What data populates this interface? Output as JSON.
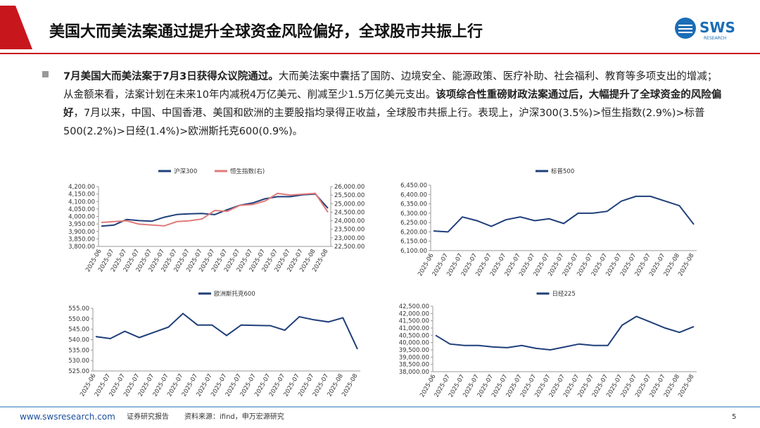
{
  "header": {
    "title": "美国大而美法案通过提升全球资金风险偏好，全球股市共振上行",
    "logo": "SWS",
    "logo_sub": "RESEARCH"
  },
  "body": [
    {
      "text": "7月美国大而美法案于7月3日获得众议院通过。",
      "bold": true
    },
    {
      "text": "大而美法案中囊括了国防、边境安全、能源政策、医疗补助、社会福利、教育等多项支出的增减；从金额来看，法案计划在未来10年内减税4万亿美元、削减至少1.5万亿美元支出。",
      "bold": false
    },
    {
      "text": "该项综合性重磅财政法案通过后，大幅提升了全球资金的风险偏好",
      "bold": true
    },
    {
      "text": "，7月以来，中国、中国香港、美国和欧洲的主要股指均录得正收益，全球股市共振上行。表现上，沪深300(3.5%)>恒生指数(2.9%)>标普500(2.2%)>日经(1.4%)>欧洲斯托克600(0.9%)。",
      "bold": false
    }
  ],
  "chart_data": [
    {
      "type": "line",
      "categories": [
        "2025-06",
        "2025-07",
        "2025-07",
        "2025-07",
        "2025-07",
        "2025-07",
        "2025-07",
        "2025-07",
        "2025-07",
        "2025-07",
        "2025-07",
        "2025-07",
        "2025-07",
        "2025-07",
        "2025-07",
        "2025-07",
        "2025-07",
        "2025-08",
        "2025-08"
      ],
      "series": [
        {
          "name": "沪深300",
          "color": "#1f3f7a",
          "values": [
            3935,
            3942,
            3980,
            3972,
            3968,
            3995,
            4013,
            4018,
            4020,
            4012,
            4045,
            4075,
            4090,
            4118,
            4132,
            4132,
            4145,
            4150,
            4055
          ]
        },
        {
          "name": "恒生指数(右)",
          "color": "#e07a7a",
          "axis": "y2",
          "values": [
            23900,
            23950,
            24000,
            23800,
            23750,
            23700,
            23950,
            24000,
            24100,
            24600,
            24550,
            24900,
            24950,
            25150,
            25600,
            25500,
            25550,
            25600,
            24500
          ]
        }
      ],
      "ylim": [
        3800,
        4200
      ],
      "yticks": [
        {
          "value": 3800,
          "label": "3,800.00"
        },
        {
          "value": 3850,
          "label": "3,850.00"
        },
        {
          "value": 3900,
          "label": "3,900.00"
        },
        {
          "value": 3950,
          "label": "3,950.00"
        },
        {
          "value": 4000,
          "label": "4,000.00"
        },
        {
          "value": 4050,
          "label": "4,050.00"
        },
        {
          "value": 4100,
          "label": "4,100.00"
        },
        {
          "value": 4150,
          "label": "4,150.00"
        },
        {
          "value": 4200,
          "label": "4,200.00"
        }
      ],
      "y2lim": [
        22500,
        26000
      ],
      "y2ticks": [
        {
          "value": 22500,
          "label": "22,500.00"
        },
        {
          "value": 23000,
          "label": "23,000.00"
        },
        {
          "value": 23500,
          "label": "23,500.00"
        },
        {
          "value": 24000,
          "label": "24,000.00"
        },
        {
          "value": 24500,
          "label": "24,500.00"
        },
        {
          "value": 25000,
          "label": "25,000.00"
        },
        {
          "value": 25500,
          "label": "25,500.00"
        },
        {
          "value": 26000,
          "label": "26,000.00"
        }
      ]
    },
    {
      "type": "line",
      "categories": [
        "2025-06",
        "2025-07",
        "2025-07",
        "2025-07",
        "2025-07",
        "2025-07",
        "2025-07",
        "2025-07",
        "2025-07",
        "2025-07",
        "2025-07",
        "2025-07",
        "2025-07",
        "2025-07",
        "2025-07",
        "2025-07",
        "2025-07",
        "2025-08",
        "2025-08"
      ],
      "series": [
        {
          "name": "标普500",
          "color": "#1f3f7a",
          "values": [
            6205,
            6200,
            6280,
            6260,
            6230,
            6265,
            6280,
            6260,
            6270,
            6245,
            6300,
            6300,
            6310,
            6365,
            6390,
            6390,
            6365,
            6340,
            6240
          ]
        }
      ],
      "ylim": [
        6100,
        6450
      ],
      "yticks": [
        {
          "value": 6100,
          "label": "6,100.00"
        },
        {
          "value": 6150,
          "label": "6,150.00"
        },
        {
          "value": 6200,
          "label": "6,200.00"
        },
        {
          "value": 6250,
          "label": "6,250.00"
        },
        {
          "value": 6300,
          "label": "6,300.00"
        },
        {
          "value": 6350,
          "label": "6,350.00"
        },
        {
          "value": 6400,
          "label": "6,400.00"
        },
        {
          "value": 6450,
          "label": "6,450.00"
        }
      ]
    },
    {
      "type": "line",
      "categories": [
        "2025-06",
        "2025-07",
        "2025-07",
        "2025-07",
        "2025-07",
        "2025-07",
        "2025-07",
        "2025-07",
        "2025-07",
        "2025-07",
        "2025-07",
        "2025-07",
        "2025-07",
        "2025-07",
        "2025-07",
        "2025-07",
        "2025-07",
        "2025-08",
        "2025-08"
      ],
      "series": [
        {
          "name": "欧洲斯托克600",
          "color": "#1f3f7a",
          "values": [
            541.5,
            540.5,
            544,
            541,
            543.5,
            546,
            552.5,
            547,
            547,
            542,
            547,
            546.8,
            546.7,
            544.5,
            551,
            549.5,
            548.5,
            550.5,
            535.5
          ]
        }
      ],
      "ylim": [
        525,
        555
      ],
      "yticks": [
        {
          "value": 525,
          "label": "525.00"
        },
        {
          "value": 530,
          "label": "530.00"
        },
        {
          "value": 535,
          "label": "535.00"
        },
        {
          "value": 540,
          "label": "540.00"
        },
        {
          "value": 545,
          "label": "545.00"
        },
        {
          "value": 550,
          "label": "550.00"
        },
        {
          "value": 555,
          "label": "555.00"
        }
      ]
    },
    {
      "type": "line",
      "categories": [
        "2025-06",
        "2025-07",
        "2025-07",
        "2025-07",
        "2025-07",
        "2025-07",
        "2025-07",
        "2025-07",
        "2025-07",
        "2025-07",
        "2025-07",
        "2025-07",
        "2025-07",
        "2025-07",
        "2025-07",
        "2025-07",
        "2025-07",
        "2025-08",
        "2025-08"
      ],
      "series": [
        {
          "name": "日经225",
          "color": "#1f3f7a",
          "values": [
            40500,
            39900,
            39800,
            39800,
            39700,
            39650,
            39800,
            39600,
            39500,
            39700,
            39900,
            39800,
            39800,
            41200,
            41800,
            41400,
            41000,
            40700,
            41100
          ]
        }
      ],
      "ylim": [
        38000,
        42500
      ],
      "yticks": [
        {
          "value": 38000,
          "label": "38,000.00"
        },
        {
          "value": 38500,
          "label": "38,500.00"
        },
        {
          "value": 39000,
          "label": "39,000.00"
        },
        {
          "value": 39500,
          "label": "39,500.00"
        },
        {
          "value": 40000,
          "label": "40,000.00"
        },
        {
          "value": 40500,
          "label": "40,500.00"
        },
        {
          "value": 41000,
          "label": "41,000.00"
        },
        {
          "value": 41500,
          "label": "41,500.00"
        },
        {
          "value": 42000,
          "label": "42,000.00"
        },
        {
          "value": 42500,
          "label": "42,500.00"
        }
      ]
    }
  ],
  "footer": {
    "url": "www.swsresearch.com",
    "label": "证券研究报告",
    "source": "资料来源：ifind，申万宏源研究",
    "page": "5"
  }
}
